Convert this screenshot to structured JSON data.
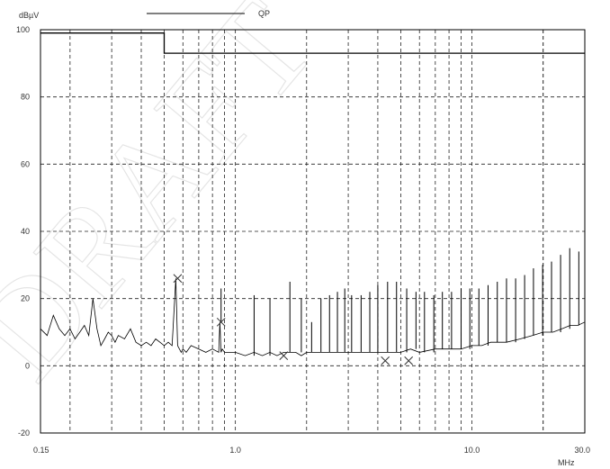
{
  "chart_data": {
    "type": "line",
    "title": "",
    "ylabel": "dBµV",
    "xlabel": "MHz",
    "x_scale": "log",
    "xlim": [
      0.15,
      30.0
    ],
    "ylim": [
      -20,
      100
    ],
    "y_ticks": [
      -20,
      0,
      20,
      40,
      60,
      80,
      100
    ],
    "x_tick_labels": [
      "0.15",
      "1.0",
      "10.0",
      "30.0"
    ],
    "grid": true,
    "legend": {
      "position": "top-center",
      "entries": [
        {
          "name": "QP",
          "color": "#000000"
        }
      ]
    },
    "watermark": "DRAFT",
    "limit_line": {
      "x": [
        0.15,
        0.5,
        0.5,
        30.0
      ],
      "y": [
        99,
        99,
        93,
        93
      ]
    },
    "series": [
      {
        "name": "",
        "x": [
          0.15,
          0.16,
          0.17,
          0.18,
          0.19,
          0.2,
          0.21,
          0.22,
          0.23,
          0.24,
          0.25,
          0.26,
          0.27,
          0.28,
          0.29,
          0.3,
          0.31,
          0.32,
          0.34,
          0.36,
          0.38,
          0.4,
          0.42,
          0.44,
          0.46,
          0.48,
          0.5,
          0.52,
          0.54,
          0.56,
          0.57,
          0.58,
          0.59,
          0.6,
          0.62,
          0.65,
          0.7,
          0.75,
          0.8,
          0.85,
          0.86,
          0.87,
          0.88,
          0.9,
          0.95,
          1.0,
          1.1,
          1.2,
          1.3,
          1.4,
          1.5,
          1.6,
          1.7,
          1.8,
          1.9,
          2.0,
          2.2,
          2.4,
          2.6,
          2.8,
          3.0,
          3.5,
          4.0,
          4.5,
          5.0,
          5.5,
          6.0,
          7.0,
          8.0,
          9.0,
          10.0,
          11.0,
          12.0,
          14.0,
          16.0,
          18.0,
          20.0,
          22.0,
          24.0,
          26.0,
          28.0,
          30.0
        ],
        "y": [
          11,
          9,
          15,
          11,
          9,
          11,
          8,
          10,
          12,
          9,
          20,
          11,
          6,
          8,
          10,
          9,
          7,
          9,
          8,
          11,
          7,
          6,
          7,
          6,
          8,
          7,
          6,
          7,
          6,
          26,
          6,
          5,
          4,
          5,
          4,
          6,
          5,
          4,
          5,
          4,
          13,
          4,
          5,
          4,
          4,
          4,
          3,
          4,
          3,
          4,
          3,
          4,
          4,
          4,
          3,
          4,
          4,
          4,
          4,
          4,
          4,
          4,
          4,
          4,
          4,
          5,
          4,
          5,
          5,
          5,
          6,
          6,
          7,
          7,
          8,
          9,
          10,
          10,
          11,
          12,
          12,
          13
        ]
      }
    ],
    "spikes": {
      "x": [
        0.57,
        0.87,
        1.2,
        1.4,
        1.7,
        1.9,
        2.1,
        2.3,
        2.5,
        2.7,
        2.9,
        3.1,
        3.4,
        3.7,
        4.0,
        4.4,
        4.8,
        5.3,
        5.8,
        6.3,
        6.9,
        7.5,
        8.2,
        9.0,
        9.8,
        10.7,
        11.7,
        12.8,
        14.0,
        15.3,
        16.7,
        18.2,
        19.9,
        21.7,
        23.7,
        25.9,
        28.3
      ],
      "y": [
        26,
        23,
        21,
        20,
        25,
        20,
        13,
        20,
        21,
        22,
        23,
        21,
        21,
        22,
        24,
        25,
        25,
        23,
        22,
        22,
        21,
        22,
        22,
        23,
        23,
        23,
        24,
        25,
        26,
        26,
        27,
        29,
        30,
        31,
        33,
        35,
        34
      ]
    },
    "markers": {
      "x": [
        0.57,
        0.87,
        1.6,
        4.3,
        5.4
      ],
      "y": [
        26,
        13,
        3,
        1.5,
        1.5
      ]
    }
  }
}
